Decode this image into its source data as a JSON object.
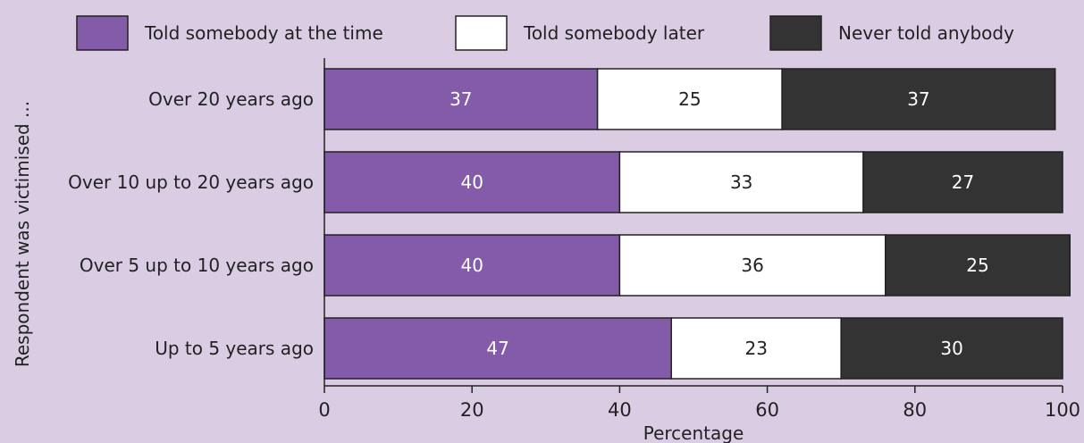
{
  "chart_data": {
    "type": "bar",
    "orientation": "horizontal",
    "stacked": true,
    "title": "",
    "xlabel": "Percentage",
    "ylabel": "Respondent was victimised ...",
    "xlim": [
      0,
      100
    ],
    "x_ticks": [
      "0",
      "20",
      "40",
      "60",
      "80",
      "100"
    ],
    "x_tick_values": [
      0,
      20,
      40,
      60,
      80,
      100
    ],
    "grid": false,
    "legend_position": "top",
    "categories": [
      "Over 20 years ago",
      "Over 10 up to 20 years ago",
      "Over 5 up to 10 years ago",
      "Up to 5 years ago"
    ],
    "series": [
      {
        "name": "Told somebody at the time",
        "color": "#835ba8",
        "text_color": "#ffffff",
        "values": [
          37,
          40,
          40,
          47
        ]
      },
      {
        "name": "Told somebody later",
        "color": "#ffffff",
        "text_color": "#222222",
        "values": [
          25,
          33,
          36,
          23
        ]
      },
      {
        "name": "Never told anybody",
        "color": "#333333",
        "text_color": "#ffffff",
        "values": [
          37,
          27,
          25,
          30
        ]
      }
    ]
  }
}
